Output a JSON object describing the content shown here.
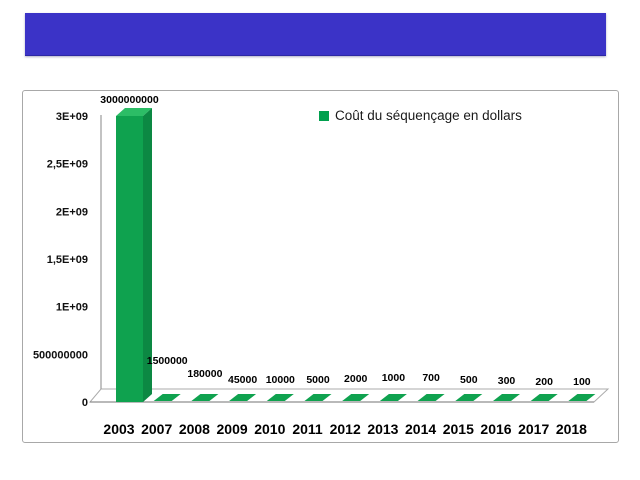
{
  "slide": {
    "background": "#ffffff"
  },
  "banner": {
    "text": "",
    "color": "#3B33C7"
  },
  "chart_data": {
    "type": "bar",
    "style": "3d-column",
    "title": "",
    "series_name": "Coût du séquençage en dollars",
    "categories": [
      "2003",
      "2007",
      "2008",
      "2009",
      "2010",
      "2011",
      "2012",
      "2013",
      "2014",
      "2015",
      "2016",
      "2017",
      "2018"
    ],
    "values": [
      3000000000,
      1500000,
      180000,
      45000,
      10000,
      5000,
      2000,
      1000,
      700,
      500,
      300,
      200,
      100
    ],
    "data_labels": [
      "3000000000",
      "1500000",
      "180000",
      "45000",
      "10000",
      "5000",
      "2000",
      "1000",
      "700",
      "500",
      "300",
      "200",
      "100"
    ],
    "xlabel": "",
    "ylabel": "",
    "ylim": [
      0,
      3000000000
    ],
    "y_ticks": [
      "0",
      "500000000",
      "1E+09",
      "1,5E+09",
      "2E+09",
      "2,5E+09",
      "3E+09"
    ],
    "grid": false,
    "legend_position": "top-right",
    "colors": {
      "bar_front": "#0FA24F",
      "bar_top": "#2CBD66",
      "bar_side": "#0C8843",
      "legend_swatch": "#00A04E",
      "axis_line": "#9b9b9b",
      "front_base_line": "#8f8f8f",
      "floor_stroke": "#ababab"
    }
  }
}
